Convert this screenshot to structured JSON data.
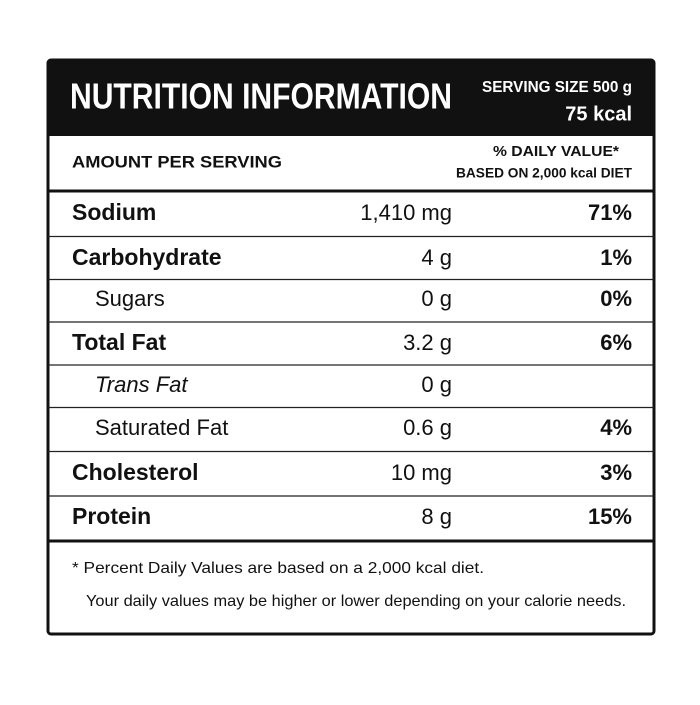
{
  "header": {
    "title": "NUTRITION INFORMATION",
    "serving_size": "SERVING SIZE 500 g",
    "energy": "75 kcal"
  },
  "columns": {
    "amount": "AMOUNT PER SERVING",
    "daily_value": "% DAILY VALUE*",
    "daily_value_basis": "BASED ON 2,000 kcal DIET"
  },
  "rows": [
    {
      "name": "Sodium",
      "amount": "1,410 mg",
      "dv": "71%"
    },
    {
      "name": "Carbohydrate",
      "amount": "4 g",
      "dv": "1%"
    },
    {
      "name": "Sugars",
      "amount": "0 g",
      "dv": "0%"
    },
    {
      "name": "Total Fat",
      "amount": "3.2 g",
      "dv": "6%"
    },
    {
      "name": "Trans Fat",
      "amount": "0 g"
    },
    {
      "name": "Saturated Fat",
      "amount": "0.6 g",
      "dv": "4%"
    },
    {
      "name": "Cholesterol",
      "amount": "10 mg",
      "dv": "3%"
    },
    {
      "name": "Protein",
      "amount": "8 g",
      "dv": "15%"
    }
  ],
  "footnote": [
    "* Percent Daily Values are based on a 2,000 kcal diet.",
    "Your daily values may be higher or lower depending on your calorie needs."
  ]
}
